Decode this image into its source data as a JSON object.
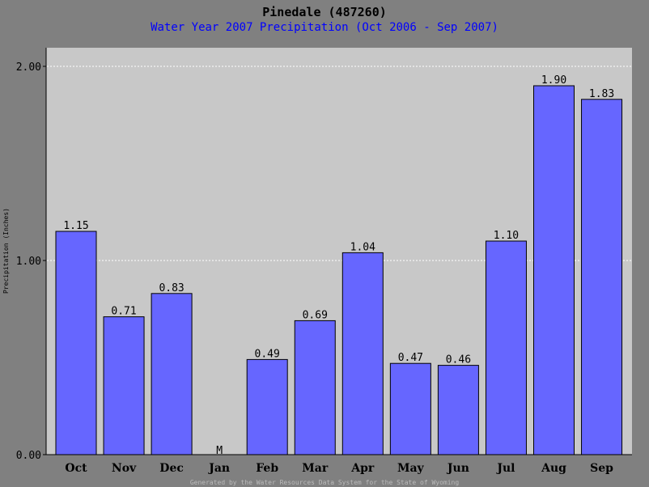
{
  "chart_data": {
    "type": "bar",
    "title": "Pinedale (487260)",
    "subtitle": "Water Year 2007 Precipitation (Oct 2006 - Sep 2007)",
    "ylabel": "Precipitation (Inches)",
    "xlabel": "",
    "ylim": [
      0,
      2.2
    ],
    "yticks": [
      0,
      1,
      2
    ],
    "ytick_labels": [
      "0.00",
      "1.00",
      "2.00"
    ],
    "grid": "horizontal dotted",
    "categories": [
      "Oct",
      "Nov",
      "Dec",
      "Jan",
      "Feb",
      "Mar",
      "Apr",
      "May",
      "Jun",
      "Jul",
      "Aug",
      "Sep"
    ],
    "values": [
      1.15,
      0.71,
      0.83,
      null,
      0.49,
      0.69,
      1.04,
      0.47,
      0.46,
      1.1,
      1.9,
      1.83
    ],
    "data_labels": [
      "1.15",
      "0.71",
      "0.83",
      "M",
      "0.49",
      "0.69",
      "1.04",
      "0.47",
      "0.46",
      "1.10",
      "1.90",
      "1.83"
    ],
    "missing_marker": "M",
    "missing_categories": [
      "Jan"
    ]
  },
  "footer": "Generated by the Water Resources Data System for the State of Wyoming",
  "colors": {
    "page_background": "#808080",
    "plot_background": "#c8c8c8",
    "bar_fill": "#6666ff",
    "bar_stroke": "#000000",
    "gridline": "#ffffff",
    "subtitle": "#0000ff",
    "missing": "#ff0000"
  }
}
